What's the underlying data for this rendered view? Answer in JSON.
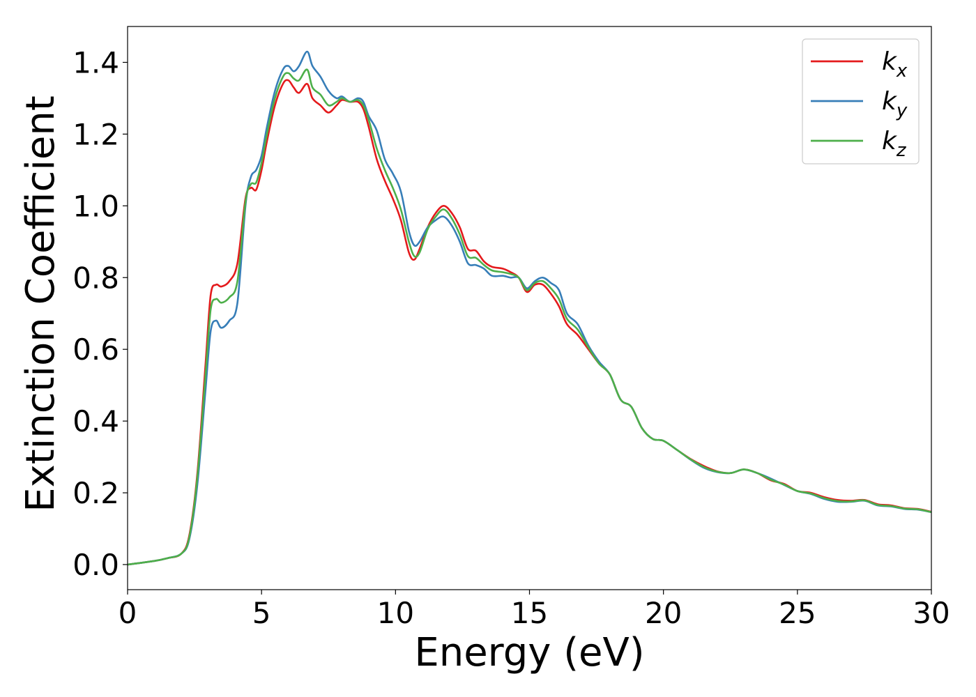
{
  "chart_data": {
    "type": "line",
    "title": "",
    "xlabel": "Energy (eV)",
    "ylabel": "Extinction Coefficient",
    "xlim": [
      0,
      30
    ],
    "ylim": [
      -0.07,
      1.5
    ],
    "xticks": [
      0,
      5,
      10,
      15,
      20,
      25,
      30
    ],
    "xtick_labels": [
      "0",
      "5",
      "10",
      "15",
      "20",
      "25",
      "30"
    ],
    "yticks": [
      0.0,
      0.2,
      0.4,
      0.6,
      0.8,
      1.0,
      1.2,
      1.4
    ],
    "ytick_labels": [
      "0.0",
      "0.2",
      "0.4",
      "0.6",
      "0.8",
      "1.0",
      "1.2",
      "1.4"
    ],
    "grid": false,
    "legend_position": "top-right",
    "series": [
      {
        "name": "k",
        "subscript": "x",
        "color": "#e41a1c",
        "x": [
          0,
          1,
          1.5,
          2.0,
          2.3,
          2.6,
          2.9,
          3.1,
          3.3,
          3.5,
          3.8,
          4.1,
          4.4,
          4.6,
          4.8,
          5.0,
          5.2,
          5.5,
          5.8,
          6.0,
          6.2,
          6.4,
          6.7,
          6.9,
          7.2,
          7.5,
          7.8,
          8.0,
          8.3,
          8.6,
          8.8,
          9.0,
          9.3,
          9.6,
          9.9,
          10.2,
          10.5,
          10.7,
          10.9,
          11.2,
          11.5,
          11.8,
          12.1,
          12.4,
          12.7,
          13.0,
          13.3,
          13.6,
          14.0,
          14.3,
          14.6,
          14.9,
          15.2,
          15.5,
          15.8,
          16.1,
          16.4,
          16.8,
          17.2,
          17.6,
          18.0,
          18.4,
          18.8,
          19.2,
          19.6,
          20.0,
          20.5,
          21.0,
          21.5,
          22.0,
          22.5,
          23.0,
          23.5,
          24.0,
          24.5,
          25.0,
          25.5,
          26.0,
          26.5,
          27.0,
          27.5,
          28.0,
          28.5,
          29.0,
          29.5,
          30.0
        ],
        "values": [
          0.0,
          0.01,
          0.018,
          0.03,
          0.08,
          0.25,
          0.55,
          0.75,
          0.78,
          0.775,
          0.79,
          0.84,
          1.02,
          1.05,
          1.045,
          1.1,
          1.18,
          1.28,
          1.34,
          1.35,
          1.33,
          1.315,
          1.34,
          1.3,
          1.28,
          1.26,
          1.28,
          1.295,
          1.29,
          1.29,
          1.27,
          1.22,
          1.13,
          1.07,
          1.02,
          0.96,
          0.87,
          0.85,
          0.88,
          0.94,
          0.98,
          1.0,
          0.98,
          0.94,
          0.88,
          0.875,
          0.845,
          0.83,
          0.825,
          0.815,
          0.8,
          0.76,
          0.78,
          0.78,
          0.755,
          0.72,
          0.67,
          0.64,
          0.6,
          0.56,
          0.53,
          0.46,
          0.44,
          0.38,
          0.35,
          0.345,
          0.32,
          0.295,
          0.275,
          0.26,
          0.255,
          0.265,
          0.255,
          0.235,
          0.225,
          0.205,
          0.2,
          0.188,
          0.18,
          0.178,
          0.18,
          0.168,
          0.165,
          0.157,
          0.155,
          0.147
        ]
      },
      {
        "name": "k",
        "subscript": "y",
        "color": "#377eb8",
        "x": [
          0,
          1,
          1.5,
          2.0,
          2.3,
          2.6,
          2.9,
          3.1,
          3.3,
          3.5,
          3.8,
          4.1,
          4.4,
          4.6,
          4.8,
          5.0,
          5.2,
          5.5,
          5.8,
          6.0,
          6.2,
          6.4,
          6.7,
          6.9,
          7.2,
          7.5,
          7.8,
          8.0,
          8.3,
          8.6,
          8.8,
          9.0,
          9.3,
          9.6,
          9.9,
          10.2,
          10.5,
          10.7,
          10.9,
          11.2,
          11.5,
          11.8,
          12.1,
          12.4,
          12.7,
          13.0,
          13.3,
          13.6,
          14.0,
          14.3,
          14.6,
          14.9,
          15.2,
          15.5,
          15.8,
          16.1,
          16.4,
          16.8,
          17.2,
          17.6,
          18.0,
          18.4,
          18.8,
          19.2,
          19.6,
          20.0,
          20.5,
          21.0,
          21.5,
          22.0,
          22.5,
          23.0,
          23.5,
          24.0,
          24.5,
          25.0,
          25.5,
          26.0,
          26.5,
          27.0,
          27.5,
          28.0,
          28.5,
          29.0,
          29.5,
          30.0
        ],
        "values": [
          0.0,
          0.01,
          0.018,
          0.03,
          0.07,
          0.22,
          0.48,
          0.65,
          0.68,
          0.66,
          0.68,
          0.73,
          1.0,
          1.08,
          1.1,
          1.14,
          1.22,
          1.32,
          1.38,
          1.39,
          1.375,
          1.39,
          1.43,
          1.39,
          1.36,
          1.32,
          1.3,
          1.305,
          1.29,
          1.3,
          1.29,
          1.25,
          1.21,
          1.13,
          1.09,
          1.04,
          0.93,
          0.89,
          0.9,
          0.94,
          0.96,
          0.97,
          0.945,
          0.9,
          0.84,
          0.835,
          0.825,
          0.805,
          0.805,
          0.8,
          0.8,
          0.77,
          0.79,
          0.8,
          0.785,
          0.765,
          0.7,
          0.67,
          0.61,
          0.565,
          0.53,
          0.46,
          0.44,
          0.38,
          0.35,
          0.345,
          0.32,
          0.293,
          0.27,
          0.258,
          0.255,
          0.265,
          0.255,
          0.24,
          0.222,
          0.205,
          0.197,
          0.183,
          0.175,
          0.175,
          0.178,
          0.165,
          0.162,
          0.155,
          0.153,
          0.146
        ]
      },
      {
        "name": "k",
        "subscript": "z",
        "color": "#4daf4a",
        "x": [
          0,
          1,
          1.5,
          2.0,
          2.3,
          2.6,
          2.9,
          3.1,
          3.3,
          3.5,
          3.8,
          4.1,
          4.4,
          4.6,
          4.8,
          5.0,
          5.2,
          5.5,
          5.8,
          6.0,
          6.2,
          6.4,
          6.7,
          6.9,
          7.2,
          7.5,
          7.8,
          8.0,
          8.3,
          8.6,
          8.8,
          9.0,
          9.3,
          9.6,
          9.9,
          10.2,
          10.5,
          10.7,
          10.9,
          11.2,
          11.5,
          11.8,
          12.1,
          12.4,
          12.7,
          13.0,
          13.3,
          13.6,
          14.0,
          14.3,
          14.6,
          14.9,
          15.2,
          15.5,
          15.8,
          16.1,
          16.4,
          16.8,
          17.2,
          17.6,
          18.0,
          18.4,
          18.8,
          19.2,
          19.6,
          20.0,
          20.5,
          21.0,
          21.5,
          22.0,
          22.5,
          23.0,
          23.5,
          24.0,
          24.5,
          25.0,
          25.5,
          26.0,
          26.5,
          27.0,
          27.5,
          28.0,
          28.5,
          29.0,
          29.5,
          30.0
        ],
        "values": [
          0.0,
          0.01,
          0.018,
          0.03,
          0.075,
          0.24,
          0.52,
          0.71,
          0.74,
          0.73,
          0.745,
          0.79,
          1.01,
          1.06,
          1.065,
          1.12,
          1.2,
          1.3,
          1.36,
          1.37,
          1.355,
          1.35,
          1.38,
          1.33,
          1.31,
          1.28,
          1.29,
          1.3,
          1.29,
          1.295,
          1.28,
          1.24,
          1.16,
          1.1,
          1.05,
          0.99,
          0.9,
          0.86,
          0.87,
          0.935,
          0.97,
          0.99,
          0.965,
          0.92,
          0.86,
          0.855,
          0.835,
          0.82,
          0.815,
          0.81,
          0.8,
          0.765,
          0.785,
          0.79,
          0.77,
          0.74,
          0.685,
          0.655,
          0.605,
          0.56,
          0.53,
          0.46,
          0.44,
          0.38,
          0.35,
          0.345,
          0.32,
          0.294,
          0.272,
          0.259,
          0.255,
          0.265,
          0.255,
          0.237,
          0.223,
          0.205,
          0.198,
          0.185,
          0.177,
          0.176,
          0.179,
          0.166,
          0.163,
          0.156,
          0.154,
          0.146
        ]
      }
    ]
  }
}
